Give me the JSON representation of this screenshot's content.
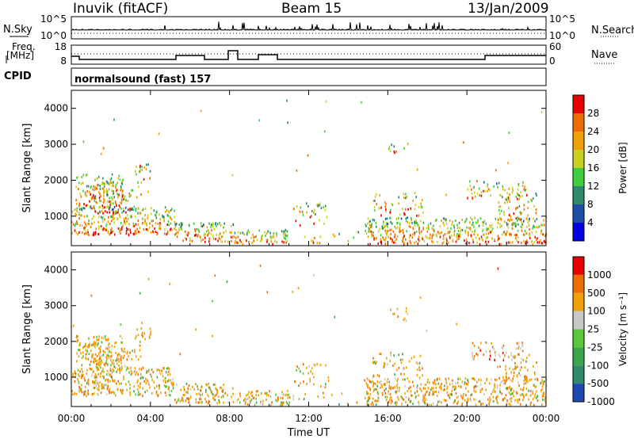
{
  "header": {
    "station": "Inuvik (fitACF)",
    "beam": "Beam 15",
    "date": "13/Jan/2009"
  },
  "panels": {
    "noise": {
      "left_label": "N.Sky",
      "right_label": "N.Search",
      "ticks_left": [
        "10^5",
        "10^0"
      ],
      "ticks_right": [
        "10^5",
        "10^0"
      ]
    },
    "freq": {
      "left_label_1": "Freq.",
      "left_label_2": "[MHz]",
      "right_label": "Nave",
      "ticks_left": [
        "18",
        "8"
      ],
      "ticks_right": [
        "60",
        "0"
      ]
    },
    "cpid": {
      "label": "CPID",
      "text": "normalsound (fast) 157"
    }
  },
  "chart_data": [
    {
      "type": "heatmap",
      "quantity": "power",
      "ylabel": "Slant Range [km]",
      "xlabel": "",
      "x_ticks": [
        "00:00",
        "04:00",
        "08:00",
        "12:00",
        "16:00",
        "20:00",
        "00:00"
      ],
      "x_range_hours": [
        0,
        24
      ],
      "y_range_km": [
        180,
        4500
      ],
      "y_ticks": [
        1000,
        2000,
        3000,
        4000
      ],
      "colorbar_label": "Power [dB]",
      "colorbar_ticks": [
        "28",
        "24",
        "20",
        "16",
        "12",
        "8",
        "4"
      ],
      "colors": [
        "#0000e0",
        "#1e4fa8",
        "#2e8a6a",
        "#3ecf3e",
        "#c8d21e",
        "#f0a000",
        "#ef6c00",
        "#e60000"
      ]
    },
    {
      "type": "heatmap",
      "quantity": "velocity",
      "ylabel": "Slant Range [km]",
      "xlabel": "Time UT",
      "x_ticks": [
        "00:00",
        "04:00",
        "08:00",
        "12:00",
        "16:00",
        "20:00",
        "00:00"
      ],
      "x_range_hours": [
        0,
        24
      ],
      "y_range_km": [
        180,
        4500
      ],
      "y_ticks": [
        1000,
        2000,
        3000,
        4000
      ],
      "colorbar_label": "Velocity [m s⁻¹]",
      "colorbar_ticks": [
        "1000",
        "500",
        "100",
        "25",
        "-25",
        "-100",
        "-500",
        "-1000"
      ],
      "colors": [
        "#1f48b0",
        "#2e8a6a",
        "#3aa84a",
        "#5ac83a",
        "#c8c8c8",
        "#f0a000",
        "#ef6c00",
        "#e60000"
      ]
    }
  ]
}
